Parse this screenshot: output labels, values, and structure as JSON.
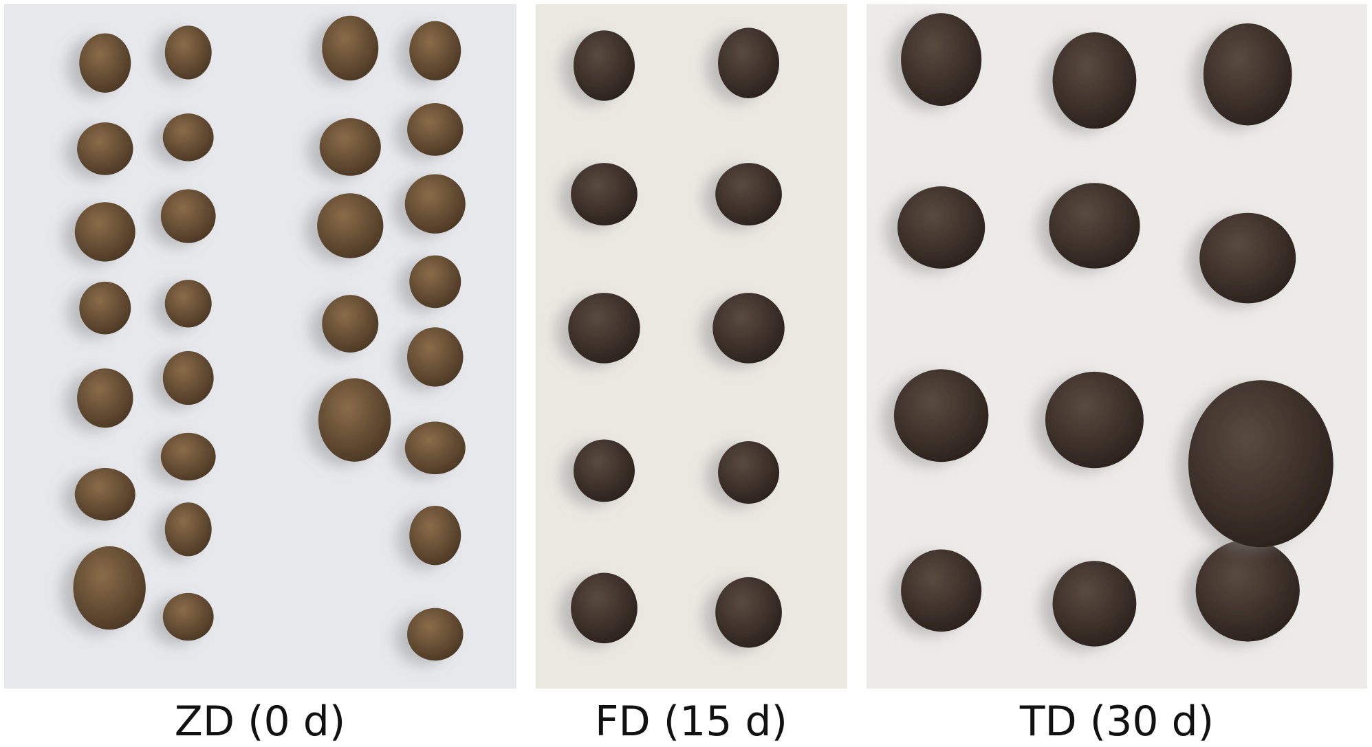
{
  "figure": {
    "panels": [
      {
        "caption": "ZD (0 d)"
      },
      {
        "caption": "FD (15 d)"
      },
      {
        "caption": "TD (30 d)"
      }
    ]
  }
}
